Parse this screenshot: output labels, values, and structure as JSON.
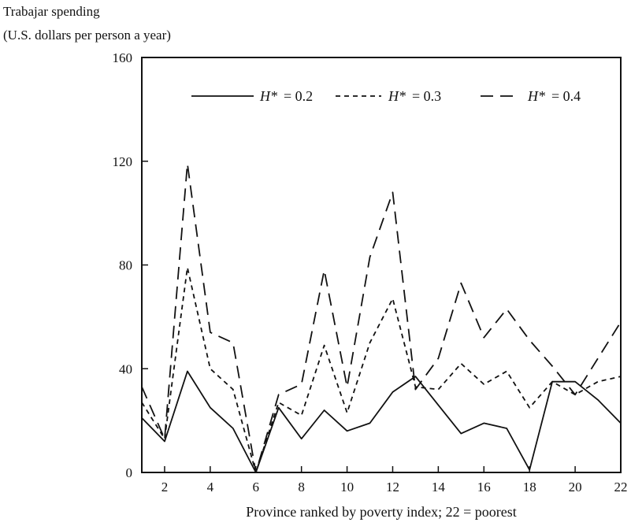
{
  "chart_data": {
    "type": "line",
    "title": "",
    "ylabel_lines": [
      "Trabajar spending",
      "(U.S. dollars per person a year)"
    ],
    "xlabel": "Province ranked by poverty index; 22 = poorest",
    "x": [
      1,
      2,
      3,
      4,
      5,
      6,
      7,
      8,
      9,
      10,
      11,
      12,
      13,
      14,
      15,
      16,
      17,
      18,
      19,
      20,
      21,
      22
    ],
    "xlim": [
      1,
      22
    ],
    "ylim": [
      0,
      160
    ],
    "xticks": [
      2,
      4,
      6,
      8,
      10,
      12,
      14,
      16,
      18,
      20,
      22
    ],
    "yticks": [
      0,
      40,
      80,
      120,
      160
    ],
    "grid": false,
    "legend_position": "top-right",
    "series": [
      {
        "name": "H* = 0.2",
        "legend_symbol": "H*",
        "legend_value": "= 0.2",
        "style": "solid",
        "values": [
          21,
          12,
          39,
          25,
          17,
          0,
          25,
          13,
          24,
          16,
          19,
          31,
          37,
          26,
          15,
          19,
          17,
          1,
          35,
          35,
          28,
          19
        ]
      },
      {
        "name": "H* = 0.3",
        "legend_symbol": "H*",
        "legend_value": "= 0.3",
        "style": "short-dash",
        "values": [
          27,
          13,
          79,
          40,
          32,
          0,
          27,
          22,
          49,
          23,
          50,
          67,
          33,
          32,
          42,
          34,
          39,
          25,
          35,
          30,
          35,
          37
        ]
      },
      {
        "name": "H* = 0.4",
        "legend_symbol": "H*",
        "legend_value": "= 0.4",
        "style": "long-dash",
        "values": [
          33,
          13,
          119,
          54,
          50,
          0,
          30,
          34,
          78,
          33,
          83,
          108,
          32,
          44,
          73,
          52,
          63,
          51,
          41,
          30,
          44,
          58
        ]
      }
    ],
    "colors": {
      "line": "#111111",
      "background": "#ffffff"
    }
  }
}
